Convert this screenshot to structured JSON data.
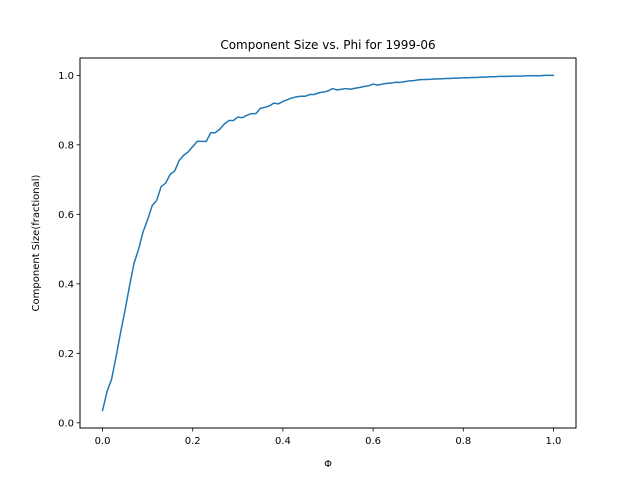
{
  "chart_data": {
    "type": "line",
    "title": "Component Size vs. Phi for 1999-06",
    "xlabel": "Φ",
    "ylabel": "Component Size(fractional)",
    "xlim": [
      -0.05,
      1.05
    ],
    "ylim": [
      -0.015,
      1.05
    ],
    "xticks": [
      0.0,
      0.2,
      0.4,
      0.6,
      0.8,
      1.0
    ],
    "xtick_labels": [
      "0.0",
      "0.2",
      "0.4",
      "0.6",
      "0.8",
      "1.0"
    ],
    "yticks": [
      0.0,
      0.2,
      0.4,
      0.6,
      0.8,
      1.0
    ],
    "ytick_labels": [
      "0.0",
      "0.2",
      "0.4",
      "0.6",
      "0.8",
      "1.0"
    ],
    "grid": false,
    "line_color": "#1f77b4",
    "series": [
      {
        "x": [
          0.0,
          0.01,
          0.02,
          0.03,
          0.04,
          0.05,
          0.06,
          0.07,
          0.08,
          0.09,
          0.1,
          0.11,
          0.12,
          0.13,
          0.14,
          0.15,
          0.16,
          0.17,
          0.18,
          0.19,
          0.2,
          0.21,
          0.22,
          0.23,
          0.24,
          0.25,
          0.26,
          0.27,
          0.28,
          0.29,
          0.3,
          0.31,
          0.32,
          0.33,
          0.34,
          0.35,
          0.36,
          0.37,
          0.38,
          0.39,
          0.4,
          0.41,
          0.42,
          0.43,
          0.44,
          0.45,
          0.46,
          0.47,
          0.48,
          0.49,
          0.5,
          0.51,
          0.52,
          0.53,
          0.54,
          0.55,
          0.56,
          0.57,
          0.58,
          0.59,
          0.6,
          0.61,
          0.62,
          0.63,
          0.64,
          0.65,
          0.66,
          0.67,
          0.68,
          0.69,
          0.7,
          0.71,
          0.72,
          0.73,
          0.74,
          0.75,
          0.76,
          0.77,
          0.78,
          0.79,
          0.8,
          0.81,
          0.82,
          0.83,
          0.84,
          0.85,
          0.86,
          0.87,
          0.88,
          0.89,
          0.9,
          0.91,
          0.92,
          0.93,
          0.94,
          0.95,
          0.96,
          0.97,
          0.98,
          0.99,
          1.0
        ],
        "values": [
          0.035,
          0.09,
          0.125,
          0.19,
          0.26,
          0.325,
          0.395,
          0.46,
          0.5,
          0.55,
          0.585,
          0.625,
          0.64,
          0.68,
          0.69,
          0.715,
          0.725,
          0.755,
          0.77,
          0.78,
          0.795,
          0.81,
          0.81,
          0.81,
          0.835,
          0.835,
          0.845,
          0.86,
          0.87,
          0.87,
          0.88,
          0.878,
          0.885,
          0.89,
          0.89,
          0.905,
          0.908,
          0.912,
          0.92,
          0.918,
          0.925,
          0.93,
          0.935,
          0.938,
          0.94,
          0.94,
          0.945,
          0.945,
          0.95,
          0.952,
          0.955,
          0.962,
          0.958,
          0.96,
          0.962,
          0.96,
          0.963,
          0.965,
          0.968,
          0.97,
          0.975,
          0.972,
          0.975,
          0.977,
          0.978,
          0.98,
          0.98,
          0.982,
          0.984,
          0.985,
          0.987,
          0.988,
          0.988,
          0.989,
          0.99,
          0.99,
          0.991,
          0.991,
          0.992,
          0.992,
          0.993,
          0.993,
          0.994,
          0.994,
          0.995,
          0.995,
          0.996,
          0.996,
          0.997,
          0.997,
          0.997,
          0.998,
          0.998,
          0.998,
          0.999,
          0.999,
          0.999,
          0.999,
          1.0,
          1.0,
          1.0
        ]
      }
    ]
  }
}
